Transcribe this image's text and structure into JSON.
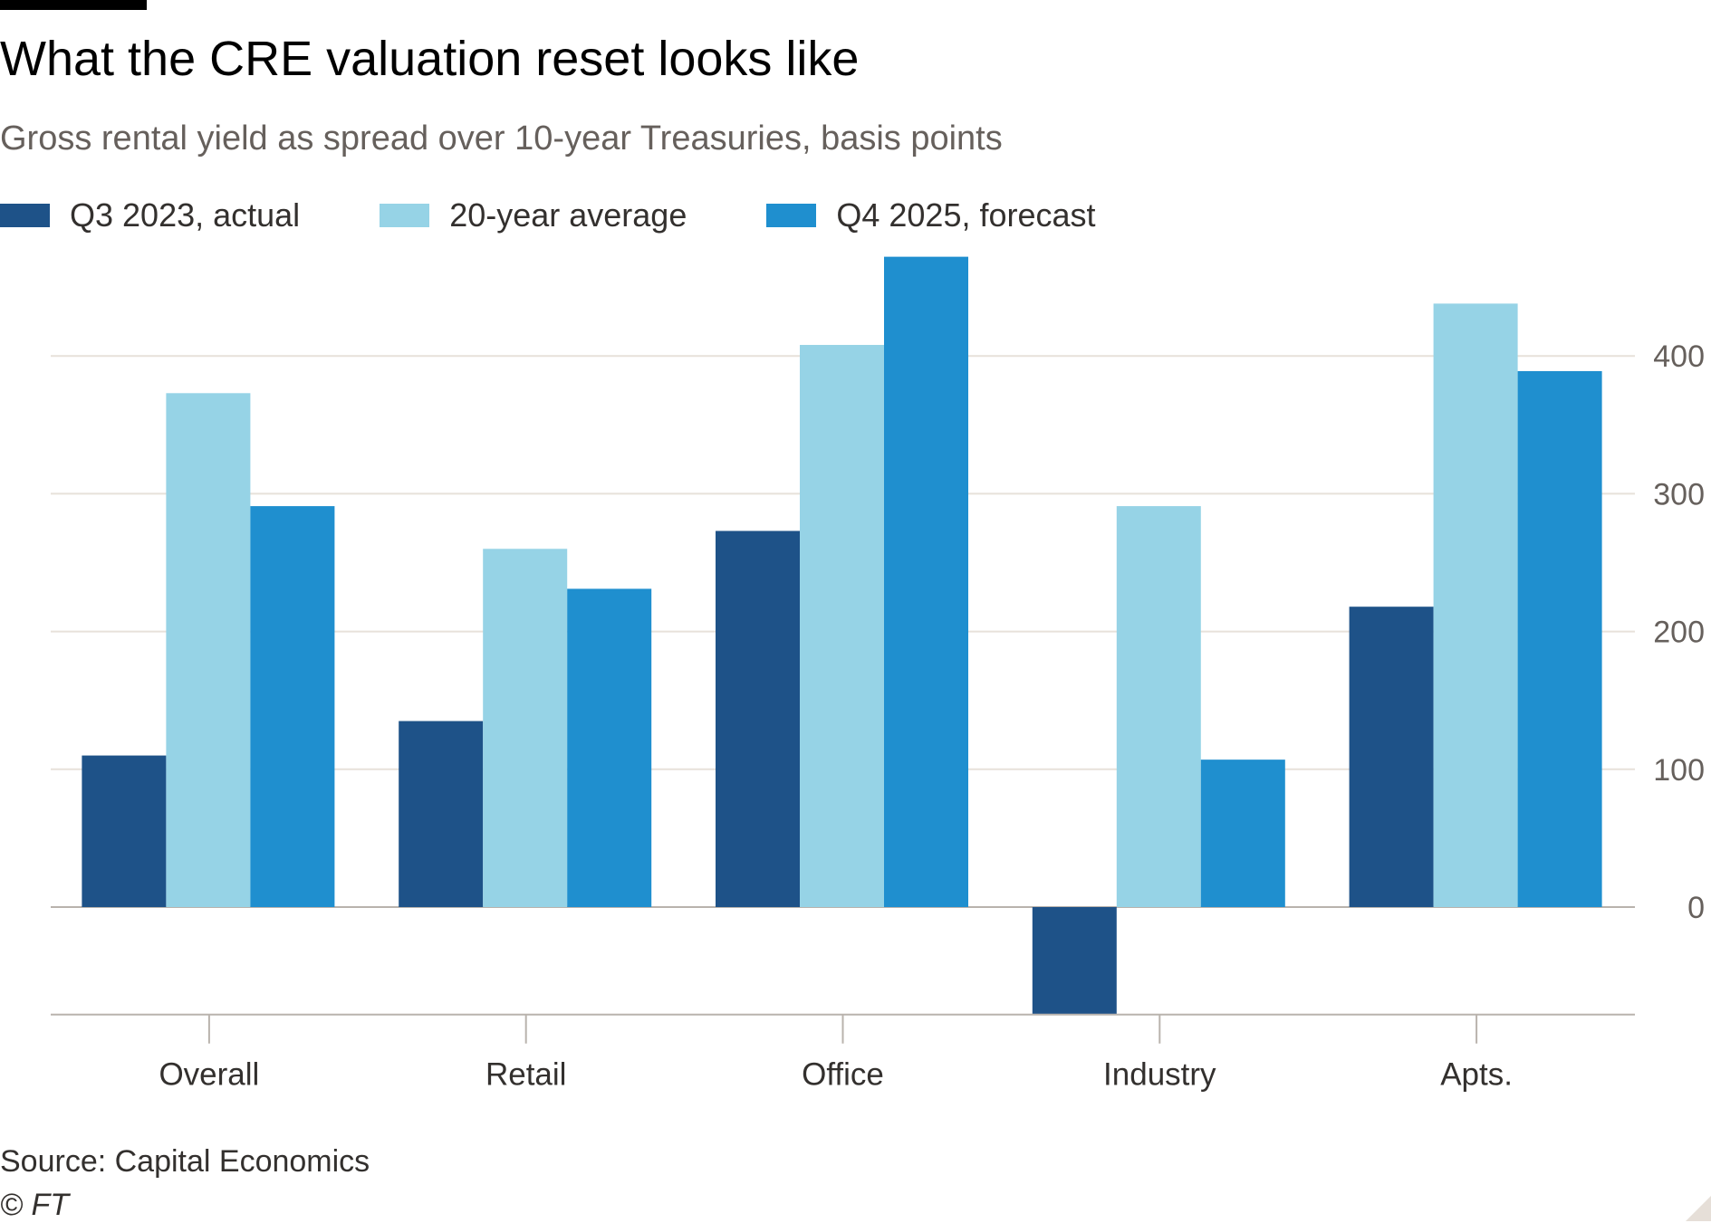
{
  "chart_data": {
    "type": "bar",
    "title": "What the CRE valuation reset looks like",
    "subtitle": "Gross rental yield as spread over 10-year Treasuries, basis points",
    "categories": [
      "Overall",
      "Retail",
      "Office",
      "Industry",
      "Apts."
    ],
    "series": [
      {
        "name": "Q3 2023, actual",
        "color": "#1e5288",
        "values": [
          110,
          135,
          273,
          -78,
          218
        ]
      },
      {
        "name": "20-year average",
        "color": "#96d3e6",
        "values": [
          373,
          260,
          408,
          291,
          438
        ]
      },
      {
        "name": "Q4 2025, forecast",
        "color": "#1f8fcf",
        "values": [
          291,
          231,
          472,
          107,
          389
        ]
      }
    ],
    "yticks": [
      "0",
      "100",
      "200",
      "300",
      "400"
    ],
    "ylim": [
      -78,
      472
    ],
    "y_axis_side": "right",
    "grid": true,
    "legend_position": "top-left",
    "source": "Source: Capital Economics",
    "copyright": "© FT"
  }
}
